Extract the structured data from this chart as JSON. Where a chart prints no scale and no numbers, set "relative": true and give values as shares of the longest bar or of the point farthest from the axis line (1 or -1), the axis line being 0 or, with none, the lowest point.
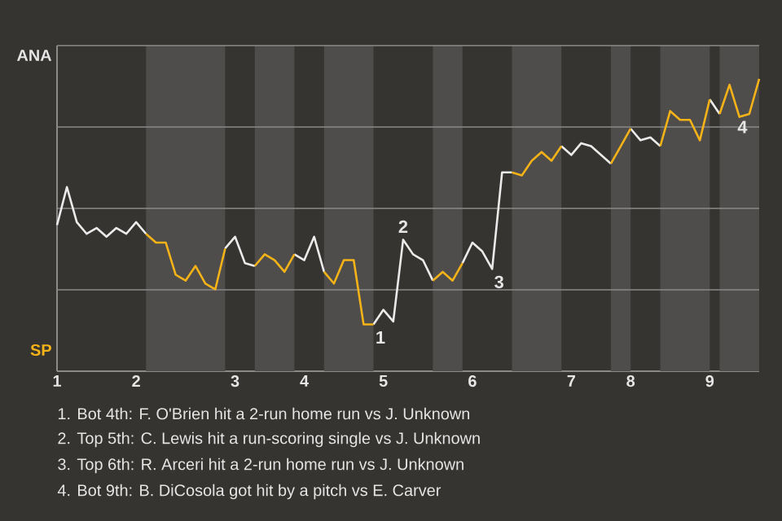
{
  "chart_data": {
    "type": "line",
    "relative": true,
    "grid": "y",
    "categories": [
      "1",
      null,
      null,
      null,
      null,
      null,
      null,
      null,
      "2",
      null,
      null,
      null,
      null,
      null,
      null,
      null,
      null,
      null,
      "3",
      null,
      null,
      null,
      null,
      null,
      null,
      "4",
      null,
      null,
      null,
      null,
      null,
      null,
      null,
      "5",
      null,
      null,
      null,
      null,
      null,
      null,
      null,
      null,
      "6",
      null,
      null,
      null,
      null,
      null,
      null,
      null,
      null,
      null,
      "7",
      null,
      null,
      null,
      null,
      null,
      "8",
      null,
      null,
      null,
      null,
      null,
      null,
      null,
      "9",
      null,
      null,
      null,
      null,
      null
    ],
    "series": [
      {
        "color": "#ebebeb",
        "values": [
          0.5,
          0.63,
          0.51,
          0.47,
          0.49,
          0.46,
          0.49,
          0.47,
          0.51,
          0.47,
          null,
          null,
          null,
          null,
          null,
          null,
          null,
          0.42,
          0.46,
          0.37,
          0.36,
          null,
          null,
          null,
          0.4,
          0.38,
          0.46,
          0.34,
          null,
          null,
          null,
          null,
          0.16,
          0.21,
          0.17,
          0.45,
          0.4,
          0.38,
          0.31,
          null,
          null,
          0.37,
          0.44,
          0.41,
          0.35,
          0.68,
          0.68,
          null,
          null,
          null,
          null,
          0.77,
          0.74,
          0.78,
          0.77,
          0.74,
          0.71,
          null,
          0.83,
          0.79,
          0.8,
          0.77,
          null,
          null,
          null,
          null,
          0.93,
          0.88,
          null,
          null,
          null,
          null
        ]
      },
      {
        "color": "#f5b318",
        "values": [
          null,
          null,
          null,
          null,
          null,
          null,
          null,
          null,
          null,
          0.47,
          0.44,
          0.44,
          0.33,
          0.31,
          0.36,
          0.3,
          0.28,
          0.42,
          null,
          null,
          0.36,
          0.4,
          0.38,
          0.34,
          0.4,
          null,
          null,
          0.34,
          0.3,
          0.38,
          0.38,
          0.16,
          0.16,
          null,
          null,
          null,
          null,
          null,
          0.31,
          0.34,
          0.31,
          0.37,
          null,
          null,
          null,
          null,
          0.68,
          0.67,
          0.72,
          0.75,
          0.72,
          0.77,
          null,
          null,
          null,
          null,
          0.71,
          0.77,
          0.83,
          null,
          null,
          0.77,
          0.89,
          0.86,
          0.86,
          0.79,
          0.93,
          0.88,
          0.98,
          0.87,
          0.88,
          1
        ]
      }
    ],
    "annotations": [
      "ANA",
      "SP",
      {
        "text": "1",
        "y": 0.16
      },
      {
        "text": "2",
        "y": 0.45
      },
      {
        "text": "3",
        "y": 0.35
      },
      {
        "text": "4",
        "y": 0.88
      },
      "1. Bot 4th: F. O'Brien hit a 2-run home run vs J. Unknown",
      "2. Top 5th: C. Lewis hit a run-scoring single vs J. Unknown",
      "3. Top 6th: R. Arceri hit a 2-run home run vs J. Unknown",
      "4. Bot 9th: B. DiCosola got hit by a pitch vs E. Carver"
    ]
  }
}
